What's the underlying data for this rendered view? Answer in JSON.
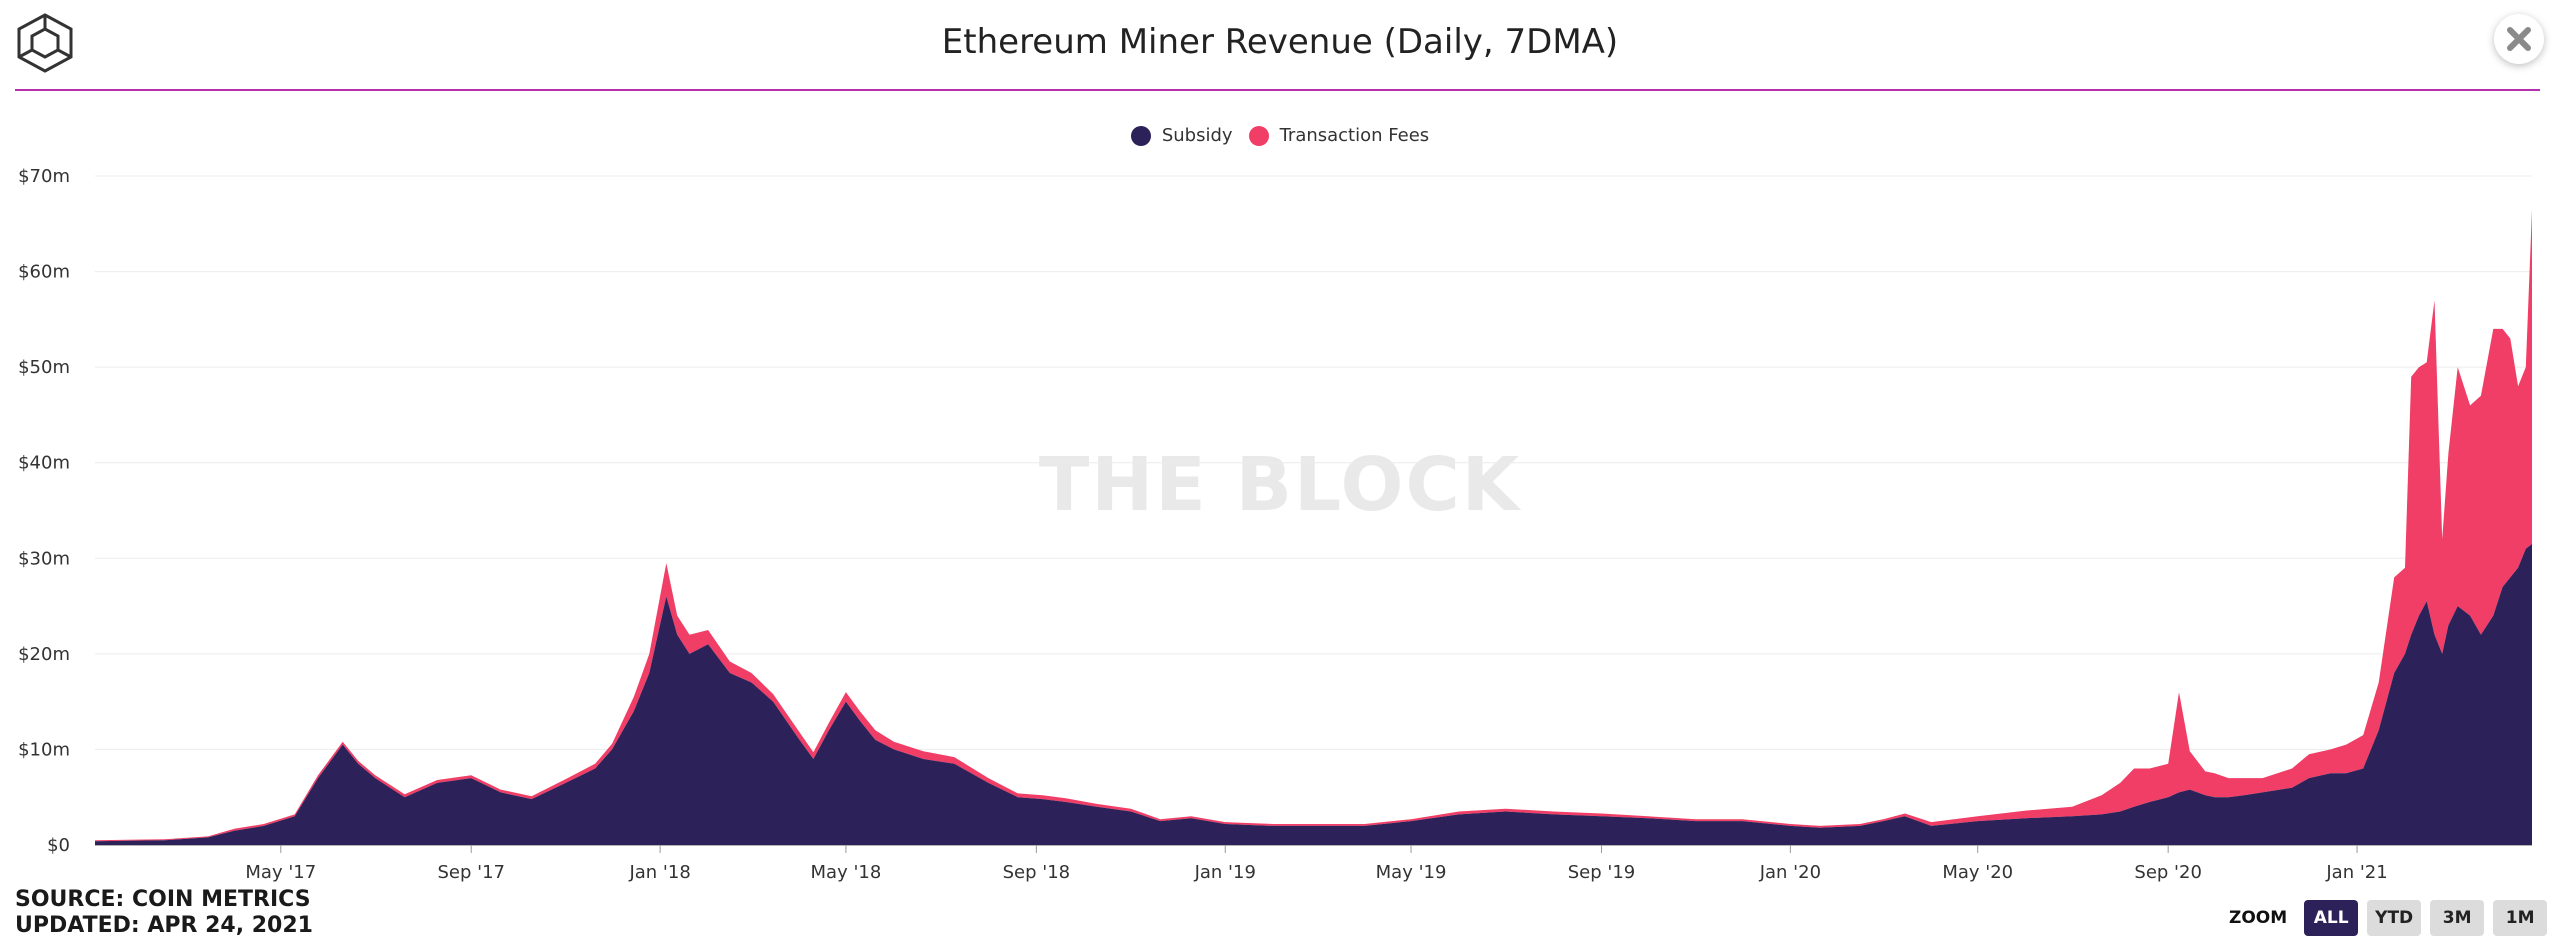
{
  "header": {
    "title": "Ethereum Miner Revenue (Daily, 7DMA)",
    "logo_icon": "cube-logo-icon",
    "close_icon": "close-icon"
  },
  "watermark": "THE BLOCK",
  "footer": {
    "source": "SOURCE: COIN METRICS",
    "updated": "UPDATED: APR 24, 2021"
  },
  "zoom": {
    "label": "ZOOM",
    "buttons": [
      "ALL",
      "YTD",
      "3M",
      "1M"
    ],
    "active": "ALL"
  },
  "colors": {
    "subsidy": "#2c2158",
    "fees": "#f03e66",
    "rule": "#b62fae"
  },
  "chart_data": {
    "type": "area",
    "stacked": true,
    "title": "Ethereum Miner Revenue (Daily, 7DMA)",
    "xlabel": "",
    "ylabel": "",
    "x_range": [
      "2017-01-01",
      "2021-04-24"
    ],
    "ylim": [
      0,
      70
    ],
    "y_ticks": [
      0,
      10,
      20,
      30,
      40,
      50,
      60,
      70
    ],
    "y_tick_labels": [
      "$0",
      "$10m",
      "$20m",
      "$30m",
      "$40m",
      "$50m",
      "$60m",
      "$70m"
    ],
    "x_ticks": [
      "2017-05-01",
      "2017-09-01",
      "2018-01-01",
      "2018-05-01",
      "2018-09-01",
      "2019-01-01",
      "2019-05-01",
      "2019-09-01",
      "2020-01-01",
      "2020-05-01",
      "2020-09-01",
      "2021-01-01"
    ],
    "x_tick_labels": [
      "May '17",
      "Sep '17",
      "Jan '18",
      "May '18",
      "Sep '18",
      "Jan '19",
      "May '19",
      "Sep '19",
      "Jan '20",
      "May '20",
      "Sep '20",
      "Jan '21"
    ],
    "legend_position": "top-center",
    "grid": true,
    "dates": [
      "2017-01-01",
      "2017-02-15",
      "2017-03-15",
      "2017-04-01",
      "2017-04-20",
      "2017-05-10",
      "2017-05-25",
      "2017-06-10",
      "2017-06-20",
      "2017-07-01",
      "2017-07-20",
      "2017-08-10",
      "2017-09-01",
      "2017-09-20",
      "2017-10-10",
      "2017-11-01",
      "2017-11-20",
      "2017-12-01",
      "2017-12-15",
      "2017-12-25",
      "2018-01-05",
      "2018-01-12",
      "2018-01-20",
      "2018-02-01",
      "2018-02-15",
      "2018-03-01",
      "2018-03-15",
      "2018-04-01",
      "2018-04-10",
      "2018-04-20",
      "2018-05-01",
      "2018-05-10",
      "2018-05-20",
      "2018-06-01",
      "2018-06-20",
      "2018-07-10",
      "2018-08-01",
      "2018-08-20",
      "2018-09-05",
      "2018-09-20",
      "2018-10-10",
      "2018-11-01",
      "2018-11-20",
      "2018-12-10",
      "2019-01-01",
      "2019-02-01",
      "2019-03-01",
      "2019-04-01",
      "2019-05-01",
      "2019-06-01",
      "2019-07-01",
      "2019-08-01",
      "2019-09-01",
      "2019-10-01",
      "2019-11-01",
      "2019-12-01",
      "2020-01-01",
      "2020-01-20",
      "2020-02-15",
      "2020-03-01",
      "2020-03-15",
      "2020-04-01",
      "2020-05-01",
      "2020-06-01",
      "2020-07-01",
      "2020-07-20",
      "2020-08-01",
      "2020-08-10",
      "2020-08-20",
      "2020-09-01",
      "2020-09-08",
      "2020-09-15",
      "2020-09-25",
      "2020-10-01",
      "2020-10-10",
      "2020-10-20",
      "2020-11-01",
      "2020-11-20",
      "2020-12-01",
      "2020-12-15",
      "2020-12-25",
      "2021-01-05",
      "2021-01-15",
      "2021-01-25",
      "2021-02-01",
      "2021-02-05",
      "2021-02-10",
      "2021-02-15",
      "2021-02-20",
      "2021-02-25",
      "2021-03-01",
      "2021-03-07",
      "2021-03-15",
      "2021-03-22",
      "2021-03-30",
      "2021-04-05",
      "2021-04-10",
      "2021-04-15",
      "2021-04-20",
      "2021-04-24"
    ],
    "series": [
      {
        "name": "Subsidy",
        "values": [
          0.4,
          0.5,
          0.8,
          1.5,
          2.0,
          3.0,
          7.0,
          10.5,
          8.5,
          7.0,
          5.0,
          6.5,
          7.0,
          5.5,
          4.8,
          6.5,
          8.0,
          10.0,
          14.0,
          18.0,
          26.0,
          22.0,
          20.0,
          21.0,
          18.0,
          17.0,
          15.0,
          11.0,
          9.0,
          12.0,
          15.0,
          13.0,
          11.0,
          10.0,
          9.0,
          8.5,
          6.5,
          5.0,
          4.8,
          4.5,
          4.0,
          3.5,
          2.5,
          2.8,
          2.2,
          2.0,
          2.0,
          2.0,
          2.5,
          3.2,
          3.5,
          3.2,
          3.0,
          2.8,
          2.5,
          2.5,
          2.0,
          1.8,
          2.0,
          2.5,
          3.0,
          2.0,
          2.5,
          2.8,
          3.0,
          3.2,
          3.5,
          4.0,
          4.5,
          5.0,
          5.5,
          5.8,
          5.2,
          5.0,
          5.0,
          5.2,
          5.5,
          6.0,
          7.0,
          7.5,
          7.5,
          8.0,
          12.0,
          18.0,
          20.0,
          22.0,
          24.0,
          25.5,
          22.0,
          20.0,
          23.0,
          25.0,
          24.0,
          22.0,
          24.0,
          27.0,
          28.0,
          29.0,
          31.0,
          31.5
        ]
      },
      {
        "name": "Transaction Fees",
        "values": [
          0.1,
          0.1,
          0.1,
          0.2,
          0.2,
          0.2,
          0.3,
          0.3,
          0.3,
          0.3,
          0.3,
          0.3,
          0.3,
          0.3,
          0.3,
          0.4,
          0.5,
          0.6,
          1.5,
          2.0,
          3.5,
          2.0,
          2.0,
          1.5,
          1.2,
          1.0,
          0.8,
          0.8,
          0.7,
          0.8,
          1.0,
          1.0,
          1.0,
          0.8,
          0.8,
          0.7,
          0.5,
          0.4,
          0.4,
          0.4,
          0.3,
          0.3,
          0.2,
          0.2,
          0.2,
          0.2,
          0.2,
          0.2,
          0.2,
          0.3,
          0.3,
          0.3,
          0.3,
          0.2,
          0.2,
          0.2,
          0.2,
          0.2,
          0.2,
          0.2,
          0.3,
          0.4,
          0.5,
          0.8,
          1.0,
          2.0,
          3.0,
          4.0,
          3.5,
          3.5,
          10.5,
          4.0,
          2.5,
          2.5,
          2.0,
          1.8,
          1.5,
          2.0,
          2.5,
          2.5,
          3.0,
          3.5,
          5.0,
          10.0,
          9.0,
          27.0,
          26.0,
          25.0,
          35.0,
          12.0,
          18.0,
          25.0,
          22.0,
          25.0,
          30.0,
          27.0,
          25.0,
          19.0,
          19.0,
          35.0
        ]
      }
    ]
  }
}
